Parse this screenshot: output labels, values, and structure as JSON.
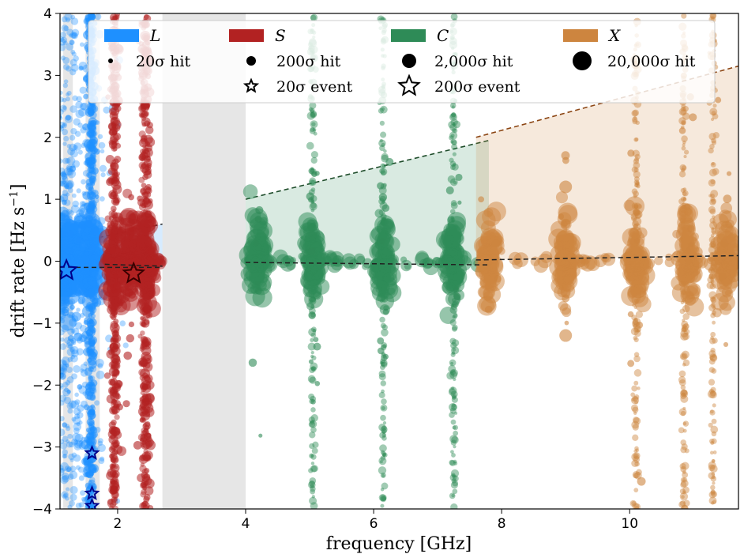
{
  "chart_data": {
    "type": "scatter",
    "xlabel": "frequency [GHz]",
    "ylabel": "drift rate [Hz s",
    "ylabel_sup": "−1",
    "ylabel_end": "]",
    "xlim": [
      1.1,
      11.7
    ],
    "ylim": [
      -4,
      4
    ],
    "xticks": [
      2,
      4,
      6,
      8,
      10
    ],
    "yticks": [
      -4,
      -3,
      -2,
      -1,
      0,
      1,
      2,
      3,
      4
    ],
    "grey_regions": [
      {
        "x0": 1.15,
        "x1": 1.3
      },
      {
        "x0": 1.5,
        "x1": 1.72
      },
      {
        "x0": 2.7,
        "x1": 4.0
      }
    ],
    "bands": [
      {
        "name": "L",
        "color": "#1e90ff",
        "range": [
          1.1,
          1.9
        ],
        "center_freqs": [
          1.15,
          1.25,
          1.45,
          1.6
        ],
        "wedge": [
          [
            1.1,
            0.25
          ],
          [
            2.7,
            0.6
          ]
        ],
        "trend": [
          [
            1.1,
            -0.1
          ],
          [
            2.7,
            -0.1
          ]
        ]
      },
      {
        "name": "S",
        "color": "#b22222",
        "range": [
          1.8,
          2.7
        ],
        "center_freqs": [
          1.95,
          2.2,
          2.45
        ],
        "wedge": null,
        "trend": [
          [
            1.8,
            -0.05
          ],
          [
            2.7,
            -0.08
          ]
        ]
      },
      {
        "name": "C",
        "color": "#2e8b57",
        "range": [
          4.0,
          7.8
        ],
        "center_freqs": [
          4.2,
          5.05,
          6.15,
          7.25
        ],
        "wedge": [
          [
            4.0,
            1.0
          ],
          [
            7.8,
            1.95
          ]
        ],
        "trend": [
          [
            4.0,
            -0.02
          ],
          [
            7.8,
            -0.06
          ]
        ]
      },
      {
        "name": "X",
        "color": "#cd853f",
        "range": [
          7.6,
          11.7
        ],
        "center_freqs": [
          7.8,
          9.0,
          10.1,
          10.9,
          11.5
        ],
        "wedge": [
          [
            7.6,
            2.0
          ],
          [
            11.7,
            3.15
          ]
        ],
        "trend": [
          [
            7.6,
            0.02
          ],
          [
            11.7,
            0.09
          ]
        ]
      }
    ],
    "vertical_streaks": [
      {
        "x": 1.6,
        "color": "#1e90ff"
      },
      {
        "x": 1.95,
        "color": "#b22222"
      },
      {
        "x": 2.4,
        "color": "#b22222"
      },
      {
        "x": 6.15,
        "color": "#2e8b57"
      },
      {
        "x": 5.05,
        "color": "#2e8b57"
      },
      {
        "x": 7.25,
        "color": "#2e8b57"
      },
      {
        "x": 10.1,
        "color": "#cd853f"
      },
      {
        "x": 10.85,
        "color": "#cd853f"
      },
      {
        "x": 11.3,
        "color": "#cd853f"
      }
    ],
    "events": [
      {
        "x": 1.2,
        "y": -0.15,
        "color": "#1e90ff",
        "big": true
      },
      {
        "x": 2.25,
        "y": -0.2,
        "color": "#b22222",
        "big": true
      },
      {
        "x": 1.6,
        "y": -3.1,
        "color": "#1e90ff",
        "big": false
      },
      {
        "x": 1.6,
        "y": -3.75,
        "color": "#1e90ff",
        "big": false
      },
      {
        "x": 1.6,
        "y": -3.95,
        "color": "#1e90ff",
        "big": false
      }
    ],
    "legend": {
      "placement": "top",
      "bands": [
        "L",
        "S",
        "C",
        "X"
      ],
      "hit_sizes": [
        "20σ hit",
        "200σ hit",
        "2,000σ hit",
        "20,000σ hit"
      ],
      "event_sizes": [
        "20σ event",
        "200σ event"
      ]
    }
  }
}
